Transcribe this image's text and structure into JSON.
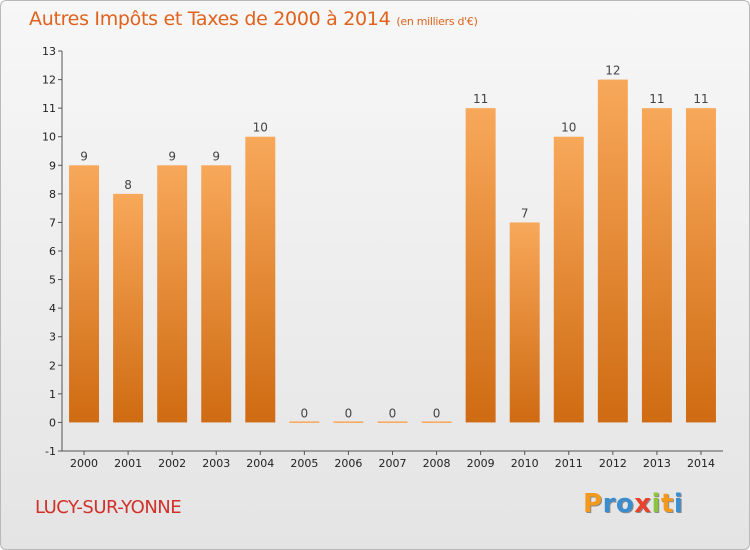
{
  "header": {
    "title": "Autres Impôts et Taxes de 2000 à 2014",
    "unit": "(en milliers d'€)"
  },
  "footer": {
    "city": "LUCY-SUR-YONNE",
    "brand_letters": [
      "P",
      "r",
      "o",
      "x",
      "i",
      "t",
      "i"
    ],
    "brand_colors": [
      "#f39a1e",
      "#3a8dcf",
      "#3a8dcf",
      "#e8412c",
      "#8cc43d",
      "#f39a1e",
      "#3a8dcf"
    ]
  },
  "colors": {
    "bar_top": "#f8a85a",
    "bar_bottom": "#cf6b12",
    "title": "#e0621c",
    "city": "#d2302a"
  },
  "chart_data": {
    "type": "bar",
    "title": "Autres Impôts et Taxes de 2000 à 2014",
    "subtitle": "(en milliers d'€)",
    "categories": [
      "2000",
      "2001",
      "2002",
      "2003",
      "2004",
      "2005",
      "2006",
      "2007",
      "2008",
      "2009",
      "2010",
      "2011",
      "2012",
      "2013",
      "2014"
    ],
    "values": [
      9,
      8,
      9,
      9,
      10,
      0,
      0,
      0,
      0,
      11,
      7,
      10,
      12,
      11,
      11
    ],
    "ylim": [
      -1,
      13
    ],
    "yticks": [
      -1,
      0,
      1,
      2,
      3,
      4,
      5,
      6,
      7,
      8,
      9,
      10,
      11,
      12,
      13
    ],
    "grid": false,
    "data_labels": true
  }
}
